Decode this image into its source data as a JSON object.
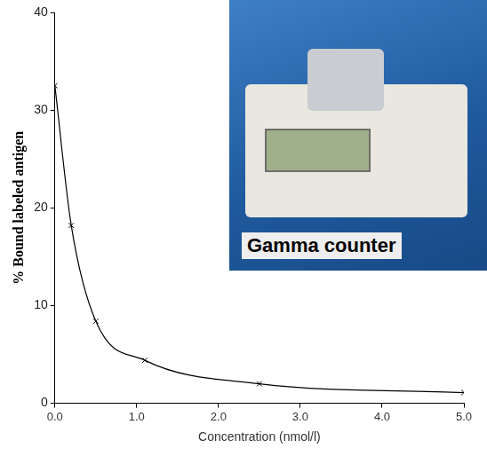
{
  "chart_data": {
    "type": "line",
    "x_label": "Concentration (nmol/l)",
    "y_label": "% Bound labeled antigen",
    "annotation": "Gamma counter",
    "x": [
      0,
      0.2,
      0.5,
      1.1,
      2.5,
      5.0
    ],
    "values": [
      32.5,
      18.2,
      8.4,
      4.4,
      2.0,
      1.1
    ],
    "color": "#000000",
    "marker": "x",
    "xlim": [
      0,
      5
    ],
    "xticks": [
      {
        "value": 0,
        "label": "0.0"
      },
      {
        "value": 1,
        "label": "1.0"
      },
      {
        "value": 2,
        "label": "2.0"
      },
      {
        "value": 3,
        "label": "3.0"
      },
      {
        "value": 4,
        "label": "4.0"
      },
      {
        "value": 5,
        "label": "5.0"
      }
    ],
    "ylim": [
      0,
      40
    ],
    "yticks": [
      0,
      10,
      20,
      30,
      40
    ],
    "grid": false
  }
}
